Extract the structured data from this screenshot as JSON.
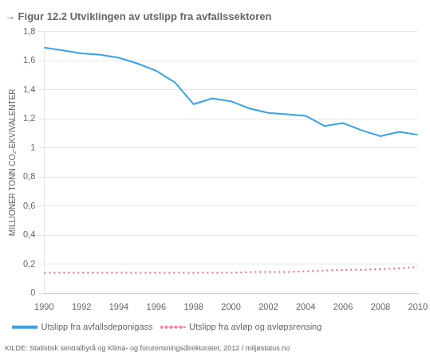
{
  "chart_data": {
    "type": "line",
    "title": "→ Figur 12.2 Utviklingen av utslipp fra avfallssektoren",
    "ylabel": "MILLIONER TONN CO₂-EKVIVALENTER",
    "annotations": [
      "KILDE: Statistisk sentralbyrå og Klima- og forurensningsdirektoratet, 2012 / miljøstatus.no"
    ],
    "x": [
      1990,
      1991,
      1992,
      1993,
      1994,
      1995,
      1996,
      1997,
      1998,
      1999,
      2000,
      2001,
      2002,
      2003,
      2004,
      2005,
      2006,
      2007,
      2008,
      2009,
      2010
    ],
    "series": [
      {
        "name": "Utslipp fra avfallsdeponigass",
        "line_style": "solid",
        "values": [
          1.69,
          1.67,
          1.65,
          1.64,
          1.62,
          1.58,
          1.53,
          1.45,
          1.3,
          1.34,
          1.32,
          1.27,
          1.24,
          1.23,
          1.22,
          1.15,
          1.17,
          1.12,
          1.08,
          1.11,
          1.09
        ]
      },
      {
        "name": "Utslipp fra avløp og avløpsrensing",
        "line_style": "dotted",
        "values": [
          0.14,
          0.14,
          0.14,
          0.14,
          0.14,
          0.14,
          0.14,
          0.14,
          0.14,
          0.14,
          0.14,
          0.145,
          0.145,
          0.145,
          0.15,
          0.155,
          0.16,
          0.16,
          0.165,
          0.17,
          0.18
        ]
      }
    ],
    "xlim": [
      1990,
      2010
    ],
    "xticks": [
      1990,
      1992,
      1994,
      1996,
      1998,
      2000,
      2002,
      2004,
      2006,
      2008,
      2010
    ],
    "ylim": [
      0,
      1.8
    ],
    "yticks": [
      0,
      {
        "value": 0.2,
        "label": "0,2"
      },
      {
        "value": 0.4,
        "label": "0,4"
      },
      {
        "value": 0.6,
        "label": "0,6"
      },
      {
        "value": 0.8,
        "label": "0,8"
      },
      1,
      {
        "value": 1.2,
        "label": "1,2"
      },
      {
        "value": 1.4,
        "label": "1,4"
      },
      {
        "value": 1.6,
        "label": "1,6"
      },
      {
        "value": 1.8,
        "label": "1,8"
      }
    ],
    "grid": "y",
    "legend": "bottom"
  }
}
